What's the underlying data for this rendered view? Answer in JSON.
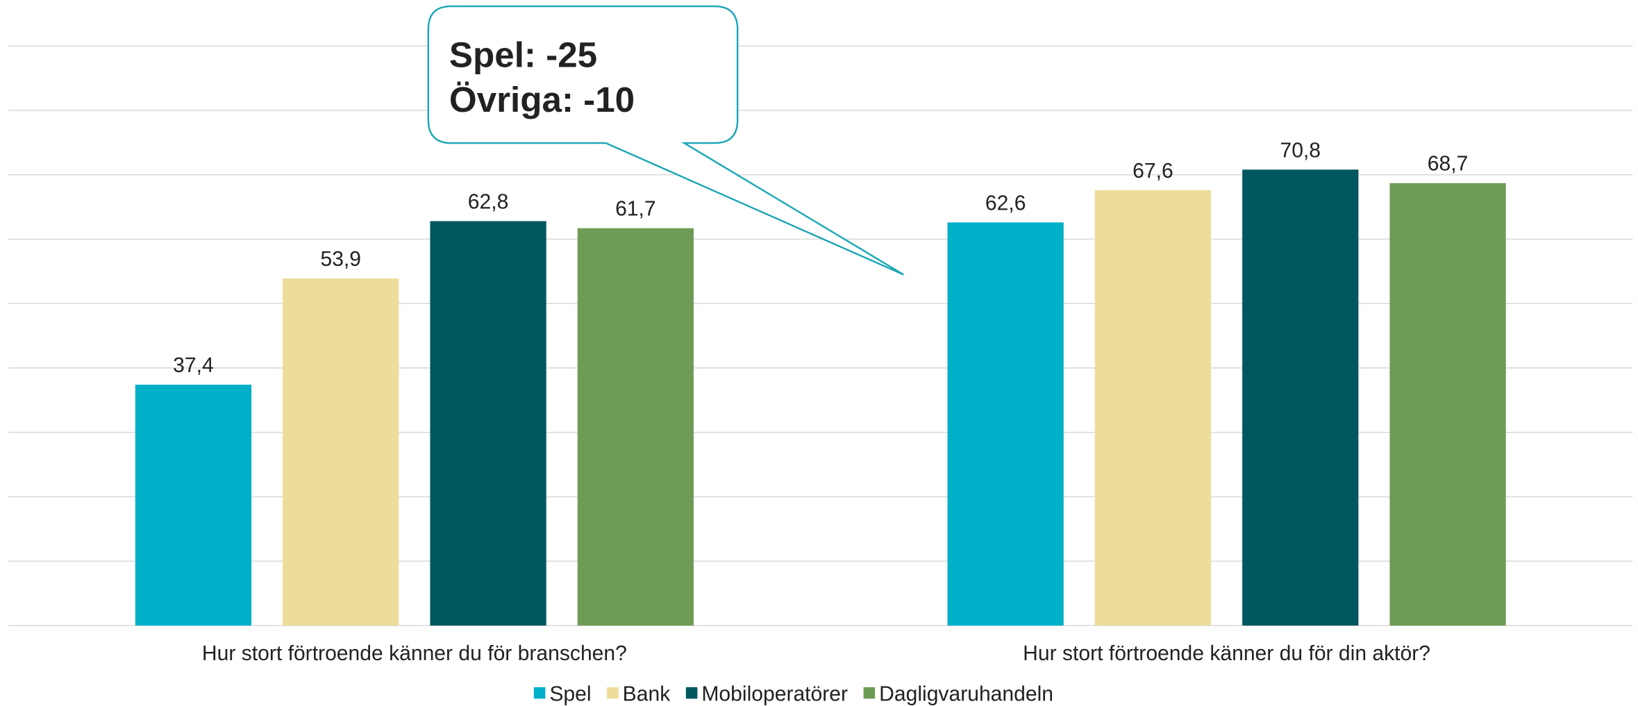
{
  "chart_data": {
    "type": "bar",
    "categories": [
      "Hur stort förtroende känner du för branschen?",
      "Hur stort förtroende känner du för din aktör?"
    ],
    "series": [
      {
        "name": "Spel",
        "color": "#00afc8",
        "values": [
          37.4,
          62.6
        ],
        "value_labels": [
          "37,4",
          "62,6"
        ]
      },
      {
        "name": "Bank",
        "color": "#eddd9a",
        "values": [
          53.9,
          67.6
        ],
        "value_labels": [
          "53,9",
          "67,6"
        ]
      },
      {
        "name": "Mobiloperatörer",
        "color": "#005760",
        "values": [
          62.8,
          70.8
        ],
        "value_labels": [
          "62,8",
          "70,8"
        ]
      },
      {
        "name": "Dagligvaruhandeln",
        "color": "#6e9b55",
        "values": [
          61.7,
          68.7
        ],
        "value_labels": [
          "61,7",
          "68,7"
        ]
      }
    ],
    "annotations": [
      "Spel: -25",
      "Övriga: -10"
    ],
    "ylim": [
      0,
      90
    ],
    "yticks": [
      0,
      10,
      20,
      30,
      40,
      50,
      60,
      70,
      80,
      90
    ],
    "grid": true,
    "legend": "bottom"
  }
}
